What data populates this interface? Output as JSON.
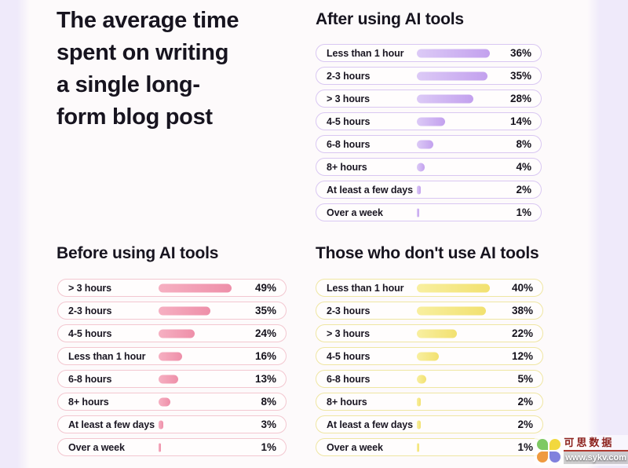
{
  "page": {
    "title": "The average time spent on writing a single long-form blog post",
    "title_lines": [
      "The average time",
      "spent on writing",
      "a single long-",
      "form blog post"
    ]
  },
  "colors": {
    "page_bg": "#efeafa",
    "content_bg": "#fdfafb",
    "text": "#17141f",
    "purple_bar": "#c3a1ee",
    "purple_border": "#d9c7f2",
    "pink_bar": "#ee8fa9",
    "pink_border": "#f3c7d0",
    "yellow_bar": "#f2e170",
    "yellow_border": "#efe6a2"
  },
  "value_suffix": "%",
  "chart_data": [
    {
      "type": "bar",
      "orientation": "horizontal",
      "title": "After using AI tools",
      "theme": "purple",
      "unit": "percent",
      "categories": [
        "Less than 1 hour",
        "2-3 hours",
        "> 3 hours",
        "4-5 hours",
        "6-8 hours",
        "8+ hours",
        "At least a few days",
        "Over a week"
      ],
      "values": [
        36,
        35,
        28,
        14,
        8,
        4,
        2,
        1
      ]
    },
    {
      "type": "bar",
      "orientation": "horizontal",
      "title": "Before using AI tools",
      "theme": "pink",
      "unit": "percent",
      "categories": [
        "> 3 hours",
        "2-3 hours",
        "4-5 hours",
        "Less than 1 hour",
        "6-8 hours",
        "8+ hours",
        "At least a few days",
        "Over a week"
      ],
      "values": [
        49,
        35,
        24,
        16,
        13,
        8,
        3,
        1
      ]
    },
    {
      "type": "bar",
      "orientation": "horizontal",
      "title": "Those who don't use AI tools",
      "theme": "yellow",
      "unit": "percent",
      "categories": [
        "Less than 1 hour",
        "2-3 hours",
        "> 3 hours",
        "4-5 hours",
        "6-8 hours",
        "8+ hours",
        "At least a few days",
        "Over a week"
      ],
      "values": [
        40,
        38,
        22,
        12,
        5,
        2,
        2,
        1
      ]
    }
  ],
  "watermark": {
    "site_name": "可思数据",
    "url": "www.sykv.com"
  }
}
